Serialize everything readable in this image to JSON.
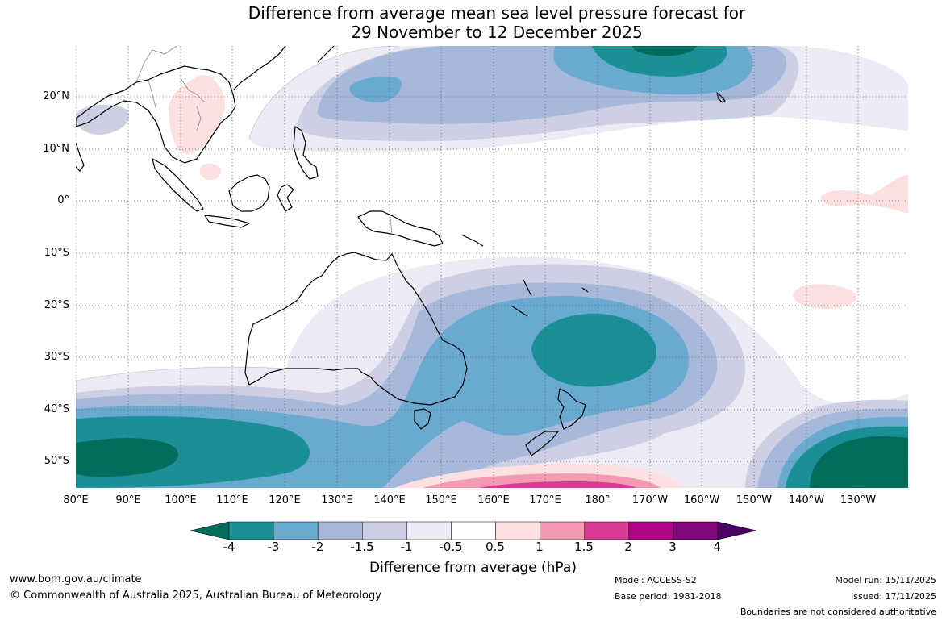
{
  "title": {
    "line1": "Difference from average mean sea level pressure forecast for",
    "line2": "29 November to 12 December 2025"
  },
  "axes": {
    "lat_labels": [
      "20°N",
      "10°N",
      "0°",
      "10°S",
      "20°S",
      "30°S",
      "40°S",
      "50°S"
    ],
    "lon_labels": [
      "80°E",
      "90°E",
      "100°E",
      "110°E",
      "120°E",
      "130°E",
      "140°E",
      "150°E",
      "160°E",
      "170°E",
      "180°",
      "170°W",
      "160°W",
      "150°W",
      "140°W",
      "130°W"
    ]
  },
  "legend": {
    "title": "Difference from average (hPa)",
    "ticks": [
      "-4",
      "-3",
      "-2",
      "-1.5",
      "-1",
      "-0.5",
      "0.5",
      "1",
      "1.5",
      "2",
      "3",
      "4"
    ],
    "colors": [
      "#006c5c",
      "#1a8f96",
      "#6aaad0",
      "#a7b9db",
      "#cdcfe5",
      "#eeeaf4",
      "#ffffff",
      "#fde0e0",
      "#f59ab3",
      "#d93a96",
      "#ae0682",
      "#81077a",
      "#4b0066"
    ]
  },
  "footer": {
    "website": "www.bom.gov.au/climate",
    "copyright": "© Commonwealth of Australia 2025, Australian Bureau of Meteorology",
    "model": "Model: ACCESS-S2",
    "base_period": "Base period: 1981-2018",
    "model_run": "Model run: 15/11/2025",
    "issued": "Issued: 17/11/2025",
    "disclaimer": "Boundaries are not considered authoritative"
  }
}
